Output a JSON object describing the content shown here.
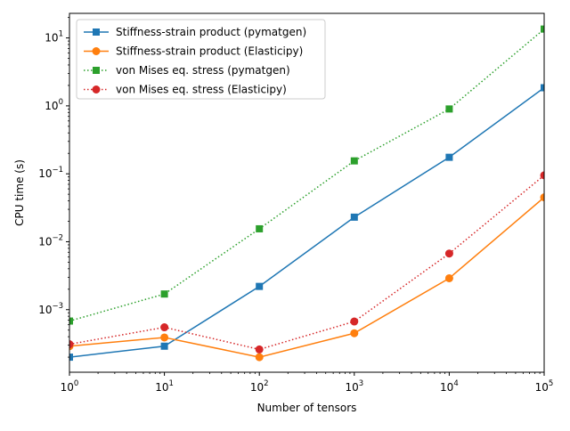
{
  "chart_data": {
    "type": "line",
    "title": "",
    "xlabel": "Number of tensors",
    "ylabel": "CPU time (s)",
    "xscale": "log",
    "yscale": "log",
    "xlim": [
      1,
      100000
    ],
    "ylim": [
      0.00012,
      23
    ],
    "grid": false,
    "legend_position": "top-left",
    "x": [
      1,
      10,
      100,
      1000,
      10000,
      100000
    ],
    "x_ticks": [
      {
        "base": "10",
        "exp": "0"
      },
      {
        "base": "10",
        "exp": "1"
      },
      {
        "base": "10",
        "exp": "2"
      },
      {
        "base": "10",
        "exp": "3"
      },
      {
        "base": "10",
        "exp": "4"
      },
      {
        "base": "10",
        "exp": "5"
      }
    ],
    "y_ticks": [
      {
        "value": 0.001,
        "base": "10",
        "exp": "−3"
      },
      {
        "value": 0.01,
        "base": "10",
        "exp": "−2"
      },
      {
        "value": 0.1,
        "base": "10",
        "exp": "−1"
      },
      {
        "value": 1,
        "base": "10",
        "exp": "0"
      },
      {
        "value": 10,
        "base": "10",
        "exp": "1"
      }
    ],
    "series": [
      {
        "name": "Stiffness-strain product (pymatgen)",
        "color": "#1f77b4",
        "linestyle": "solid",
        "marker": "square",
        "values": [
          0.0002,
          0.00029,
          0.0022,
          0.023,
          0.175,
          1.85
        ]
      },
      {
        "name": "Stiffness-strain product (Elasticipy)",
        "color": "#ff7f0e",
        "linestyle": "solid",
        "marker": "circle",
        "values": [
          0.00029,
          0.00039,
          0.0002,
          0.00045,
          0.0029,
          0.045
        ]
      },
      {
        "name": "von Mises eq. stress (pymatgen)",
        "color": "#2ca02c",
        "linestyle": "dotted",
        "marker": "square",
        "values": [
          0.00068,
          0.0017,
          0.0155,
          0.155,
          0.9,
          13.5
        ]
      },
      {
        "name": "von Mises eq. stress  (Elasticipy)",
        "color": "#d62728",
        "linestyle": "dotted",
        "marker": "circle",
        "values": [
          0.00031,
          0.00055,
          0.00026,
          0.00067,
          0.0067,
          0.095
        ]
      }
    ]
  }
}
